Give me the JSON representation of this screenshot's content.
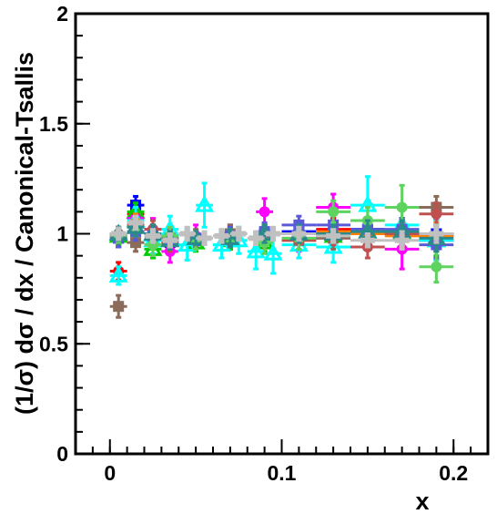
{
  "chart_data": {
    "type": "scatter",
    "title": "",
    "xlabel": "x",
    "ylabel": "(1/σ) dσ / dx / Canonical-Tsallis",
    "xlim": [
      -0.02,
      0.22
    ],
    "ylim": [
      0,
      2
    ],
    "x_ticks": [
      0,
      0.1,
      0.2
    ],
    "x_tick_labels": [
      "0",
      "0.1",
      "0.2"
    ],
    "y_ticks": [
      0,
      0.5,
      1,
      1.5,
      2
    ],
    "y_tick_labels": [
      "0",
      "0.5",
      "1",
      "1.5",
      "2"
    ],
    "grid": false,
    "legend": "none",
    "series": [
      {
        "color": "#ff0000",
        "marker": "circle",
        "x": [
          0.005,
          0.015,
          0.025,
          0.035,
          0.05,
          0.07,
          0.09,
          0.11,
          0.13,
          0.15,
          0.17,
          0.19
        ],
        "y": [
          0.83,
          1.09,
          1.0,
          0.97,
          0.98,
          0.97,
          0.99,
          1.0,
          1.02,
          1.0,
          1.0,
          0.99
        ],
        "err": [
          0.04,
          0.05,
          0.04,
          0.04,
          0.03,
          0.04,
          0.04,
          0.04,
          0.05,
          0.05,
          0.06,
          0.07
        ]
      },
      {
        "color": "#0000ff",
        "marker": "square",
        "x": [
          0.005,
          0.015,
          0.025,
          0.035,
          0.05,
          0.07,
          0.09,
          0.11,
          0.13,
          0.15,
          0.17,
          0.19
        ],
        "y": [
          0.98,
          1.13,
          0.99,
          0.96,
          0.97,
          0.98,
          1.0,
          1.01,
          1.0,
          1.02,
          1.01,
          1.0
        ],
        "err": [
          0.04,
          0.04,
          0.04,
          0.04,
          0.03,
          0.04,
          0.04,
          0.04,
          0.05,
          0.05,
          0.06,
          0.07
        ]
      },
      {
        "color": "#00cc00",
        "marker": "triangle",
        "x": [
          0.005,
          0.015,
          0.025,
          0.035,
          0.05,
          0.07,
          0.09,
          0.11,
          0.13,
          0.15,
          0.17,
          0.19
        ],
        "y": [
          0.99,
          1.1,
          0.93,
          0.98,
          0.96,
          0.97,
          0.96,
          1.0,
          0.99,
          1.01,
          1.0,
          0.97
        ],
        "err": [
          0.04,
          0.04,
          0.04,
          0.04,
          0.04,
          0.04,
          0.04,
          0.05,
          0.05,
          0.05,
          0.06,
          0.07
        ]
      },
      {
        "color": "#ff00ff",
        "marker": "circle",
        "x": [
          0.005,
          0.015,
          0.025,
          0.035,
          0.05,
          0.07,
          0.09,
          0.11,
          0.13,
          0.15,
          0.17,
          0.19
        ],
        "y": [
          0.98,
          1.07,
          1.02,
          0.92,
          0.99,
          0.99,
          1.1,
          0.98,
          1.12,
          1.0,
          0.93,
          0.97
        ],
        "err": [
          0.04,
          0.05,
          0.05,
          0.05,
          0.05,
          0.05,
          0.06,
          0.06,
          0.06,
          0.07,
          0.09,
          0.09
        ]
      },
      {
        "color": "#00ffff",
        "marker": "triangle",
        "x": [
          0.005,
          0.015,
          0.025,
          0.035,
          0.045,
          0.055,
          0.065,
          0.075,
          0.085,
          0.095,
          0.11,
          0.13,
          0.15,
          0.17,
          0.19
        ],
        "y": [
          0.81,
          1.06,
          0.97,
          1.02,
          0.95,
          1.13,
          0.95,
          0.97,
          0.92,
          0.91,
          0.95,
          0.94,
          1.13,
          1.04,
          0.97
        ],
        "err": [
          0.04,
          0.06,
          0.06,
          0.06,
          0.07,
          0.1,
          0.06,
          0.06,
          0.08,
          0.09,
          0.06,
          0.07,
          0.13,
          0.08,
          0.09
        ]
      },
      {
        "color": "#8b6b5a",
        "marker": "square",
        "x": [
          0.005,
          0.015,
          0.025,
          0.035,
          0.05,
          0.07,
          0.09,
          0.11,
          0.13,
          0.15,
          0.17,
          0.19
        ],
        "y": [
          0.67,
          0.96,
          1.0,
          0.98,
          0.98,
          1.0,
          0.98,
          0.97,
          0.98,
          1.0,
          1.01,
          1.12
        ],
        "err": [
          0.05,
          0.04,
          0.04,
          0.04,
          0.04,
          0.04,
          0.04,
          0.04,
          0.05,
          0.05,
          0.05,
          0.05
        ]
      },
      {
        "color": "#ff8000",
        "marker": "circle",
        "x": [
          0.005,
          0.015,
          0.025,
          0.035,
          0.05,
          0.07,
          0.09,
          0.11,
          0.13,
          0.15,
          0.17,
          0.19
        ],
        "y": [
          0.99,
          1.05,
          1.0,
          0.97,
          0.98,
          0.98,
          0.99,
          1.0,
          1.01,
          1.0,
          0.99,
          0.99
        ],
        "err": [
          0.03,
          0.04,
          0.04,
          0.04,
          0.03,
          0.04,
          0.04,
          0.04,
          0.04,
          0.05,
          0.05,
          0.06
        ]
      },
      {
        "color": "#c05050",
        "marker": "circle",
        "x": [
          0.005,
          0.015,
          0.025,
          0.035,
          0.05,
          0.07,
          0.09,
          0.11,
          0.13,
          0.15,
          0.17,
          0.19
        ],
        "y": [
          1.0,
          1.04,
          1.02,
          0.96,
          0.98,
          0.99,
          0.98,
          0.97,
          1.0,
          0.94,
          1.0,
          1.09
        ],
        "err": [
          0.03,
          0.04,
          0.04,
          0.04,
          0.03,
          0.04,
          0.04,
          0.04,
          0.05,
          0.05,
          0.05,
          0.05
        ]
      },
      {
        "color": "#5a5ad8",
        "marker": "square",
        "x": [
          0.005,
          0.015,
          0.025,
          0.035,
          0.05,
          0.07,
          0.09,
          0.11,
          0.13,
          0.15,
          0.17,
          0.19
        ],
        "y": [
          0.98,
          1.01,
          0.99,
          0.97,
          0.98,
          0.99,
          1.01,
          1.04,
          1.04,
          1.02,
          1.02,
          0.95
        ],
        "err": [
          0.04,
          0.04,
          0.04,
          0.04,
          0.03,
          0.04,
          0.04,
          0.04,
          0.05,
          0.05,
          0.05,
          0.06
        ]
      },
      {
        "color": "#5fd35f",
        "marker": "circle",
        "x": [
          0.005,
          0.015,
          0.025,
          0.035,
          0.05,
          0.07,
          0.09,
          0.11,
          0.13,
          0.15,
          0.17,
          0.19
        ],
        "y": [
          0.99,
          1.03,
          0.95,
          0.99,
          0.97,
          0.98,
          0.96,
          0.98,
          1.1,
          1.06,
          1.12,
          0.85
        ],
        "err": [
          0.03,
          0.04,
          0.05,
          0.04,
          0.04,
          0.04,
          0.05,
          0.05,
          0.05,
          0.06,
          0.1,
          0.07
        ]
      },
      {
        "color": "#2a8a8a",
        "marker": "triangle",
        "x": [
          0.005,
          0.015,
          0.025,
          0.035,
          0.05,
          0.07,
          0.09,
          0.11,
          0.13,
          0.15,
          0.17,
          0.19
        ],
        "y": [
          1.0,
          1.03,
          1.0,
          0.97,
          0.98,
          0.98,
          1.0,
          1.0,
          1.0,
          1.01,
          1.01,
          0.98
        ],
        "err": [
          0.03,
          0.04,
          0.04,
          0.04,
          0.03,
          0.04,
          0.04,
          0.04,
          0.04,
          0.05,
          0.05,
          0.06
        ]
      },
      {
        "color": "#c0c0c0",
        "marker": "cross",
        "x": [
          0.005,
          0.015,
          0.025,
          0.035,
          0.045,
          0.055,
          0.065,
          0.075,
          0.085,
          0.095,
          0.11,
          0.13,
          0.15,
          0.17,
          0.19
        ],
        "y": [
          1.0,
          1.05,
          0.99,
          0.97,
          1.0,
          0.98,
          0.99,
          1.0,
          0.98,
          1.0,
          1.0,
          0.99,
          0.97,
          0.97,
          1.0
        ],
        "err": [
          0.02,
          0.03,
          0.03,
          0.03,
          0.03,
          0.03,
          0.03,
          0.03,
          0.03,
          0.03,
          0.03,
          0.03,
          0.03,
          0.04,
          0.04
        ]
      }
    ]
  }
}
